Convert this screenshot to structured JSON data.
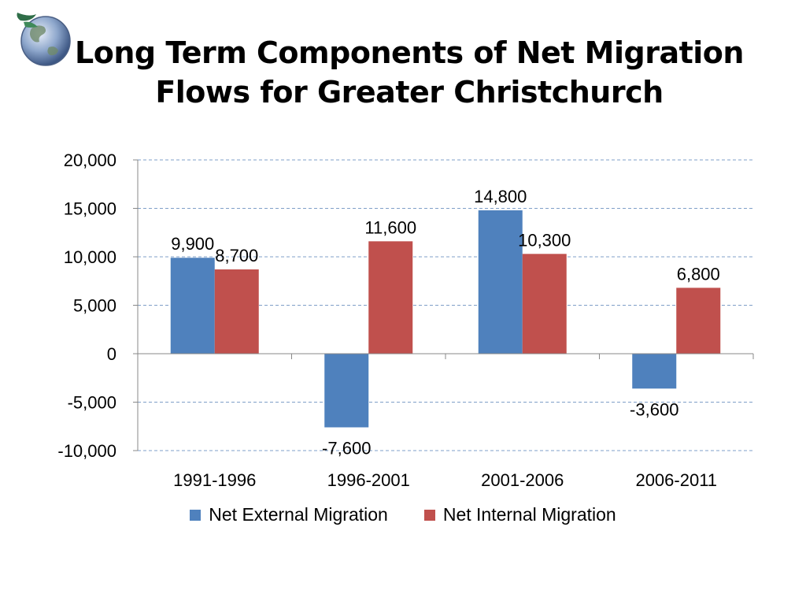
{
  "title_lines": [
    "Long Term Components of Net Migration",
    "Flows for Greater Christchurch"
  ],
  "logo": {
    "icon": "globe-icon"
  },
  "colors": {
    "external": "#4f81bd",
    "internal": "#c0504d",
    "grid": "#7f9fc8",
    "axis": "#888888",
    "text": "#000000"
  },
  "chart_data": {
    "type": "bar",
    "title": "Long Term Components of Net Migration Flows for Greater Christchurch",
    "xlabel": "",
    "ylabel": "",
    "categories": [
      "1991-1996",
      "1996-2001",
      "2001-2006",
      "2006-2011"
    ],
    "series": [
      {
        "name": "Net External Migration",
        "values": [
          9900,
          -7600,
          14800,
          -3600
        ],
        "labels": [
          "9,900",
          "-7,600",
          "14,800",
          "-3,600"
        ]
      },
      {
        "name": "Net Internal Migration",
        "values": [
          8700,
          11600,
          10300,
          6800
        ],
        "labels": [
          "8,700",
          "11,600",
          "10,300",
          "6,800"
        ]
      }
    ],
    "ylim": [
      -10000,
      20000
    ],
    "yticks": [
      20000,
      15000,
      10000,
      5000,
      0,
      -5000,
      -10000
    ],
    "ytick_labels": [
      "20,000",
      "15,000",
      "10,000",
      "5,000",
      "0",
      "-5,000",
      "-10,000"
    ],
    "grid": true,
    "legend_position": "bottom"
  }
}
